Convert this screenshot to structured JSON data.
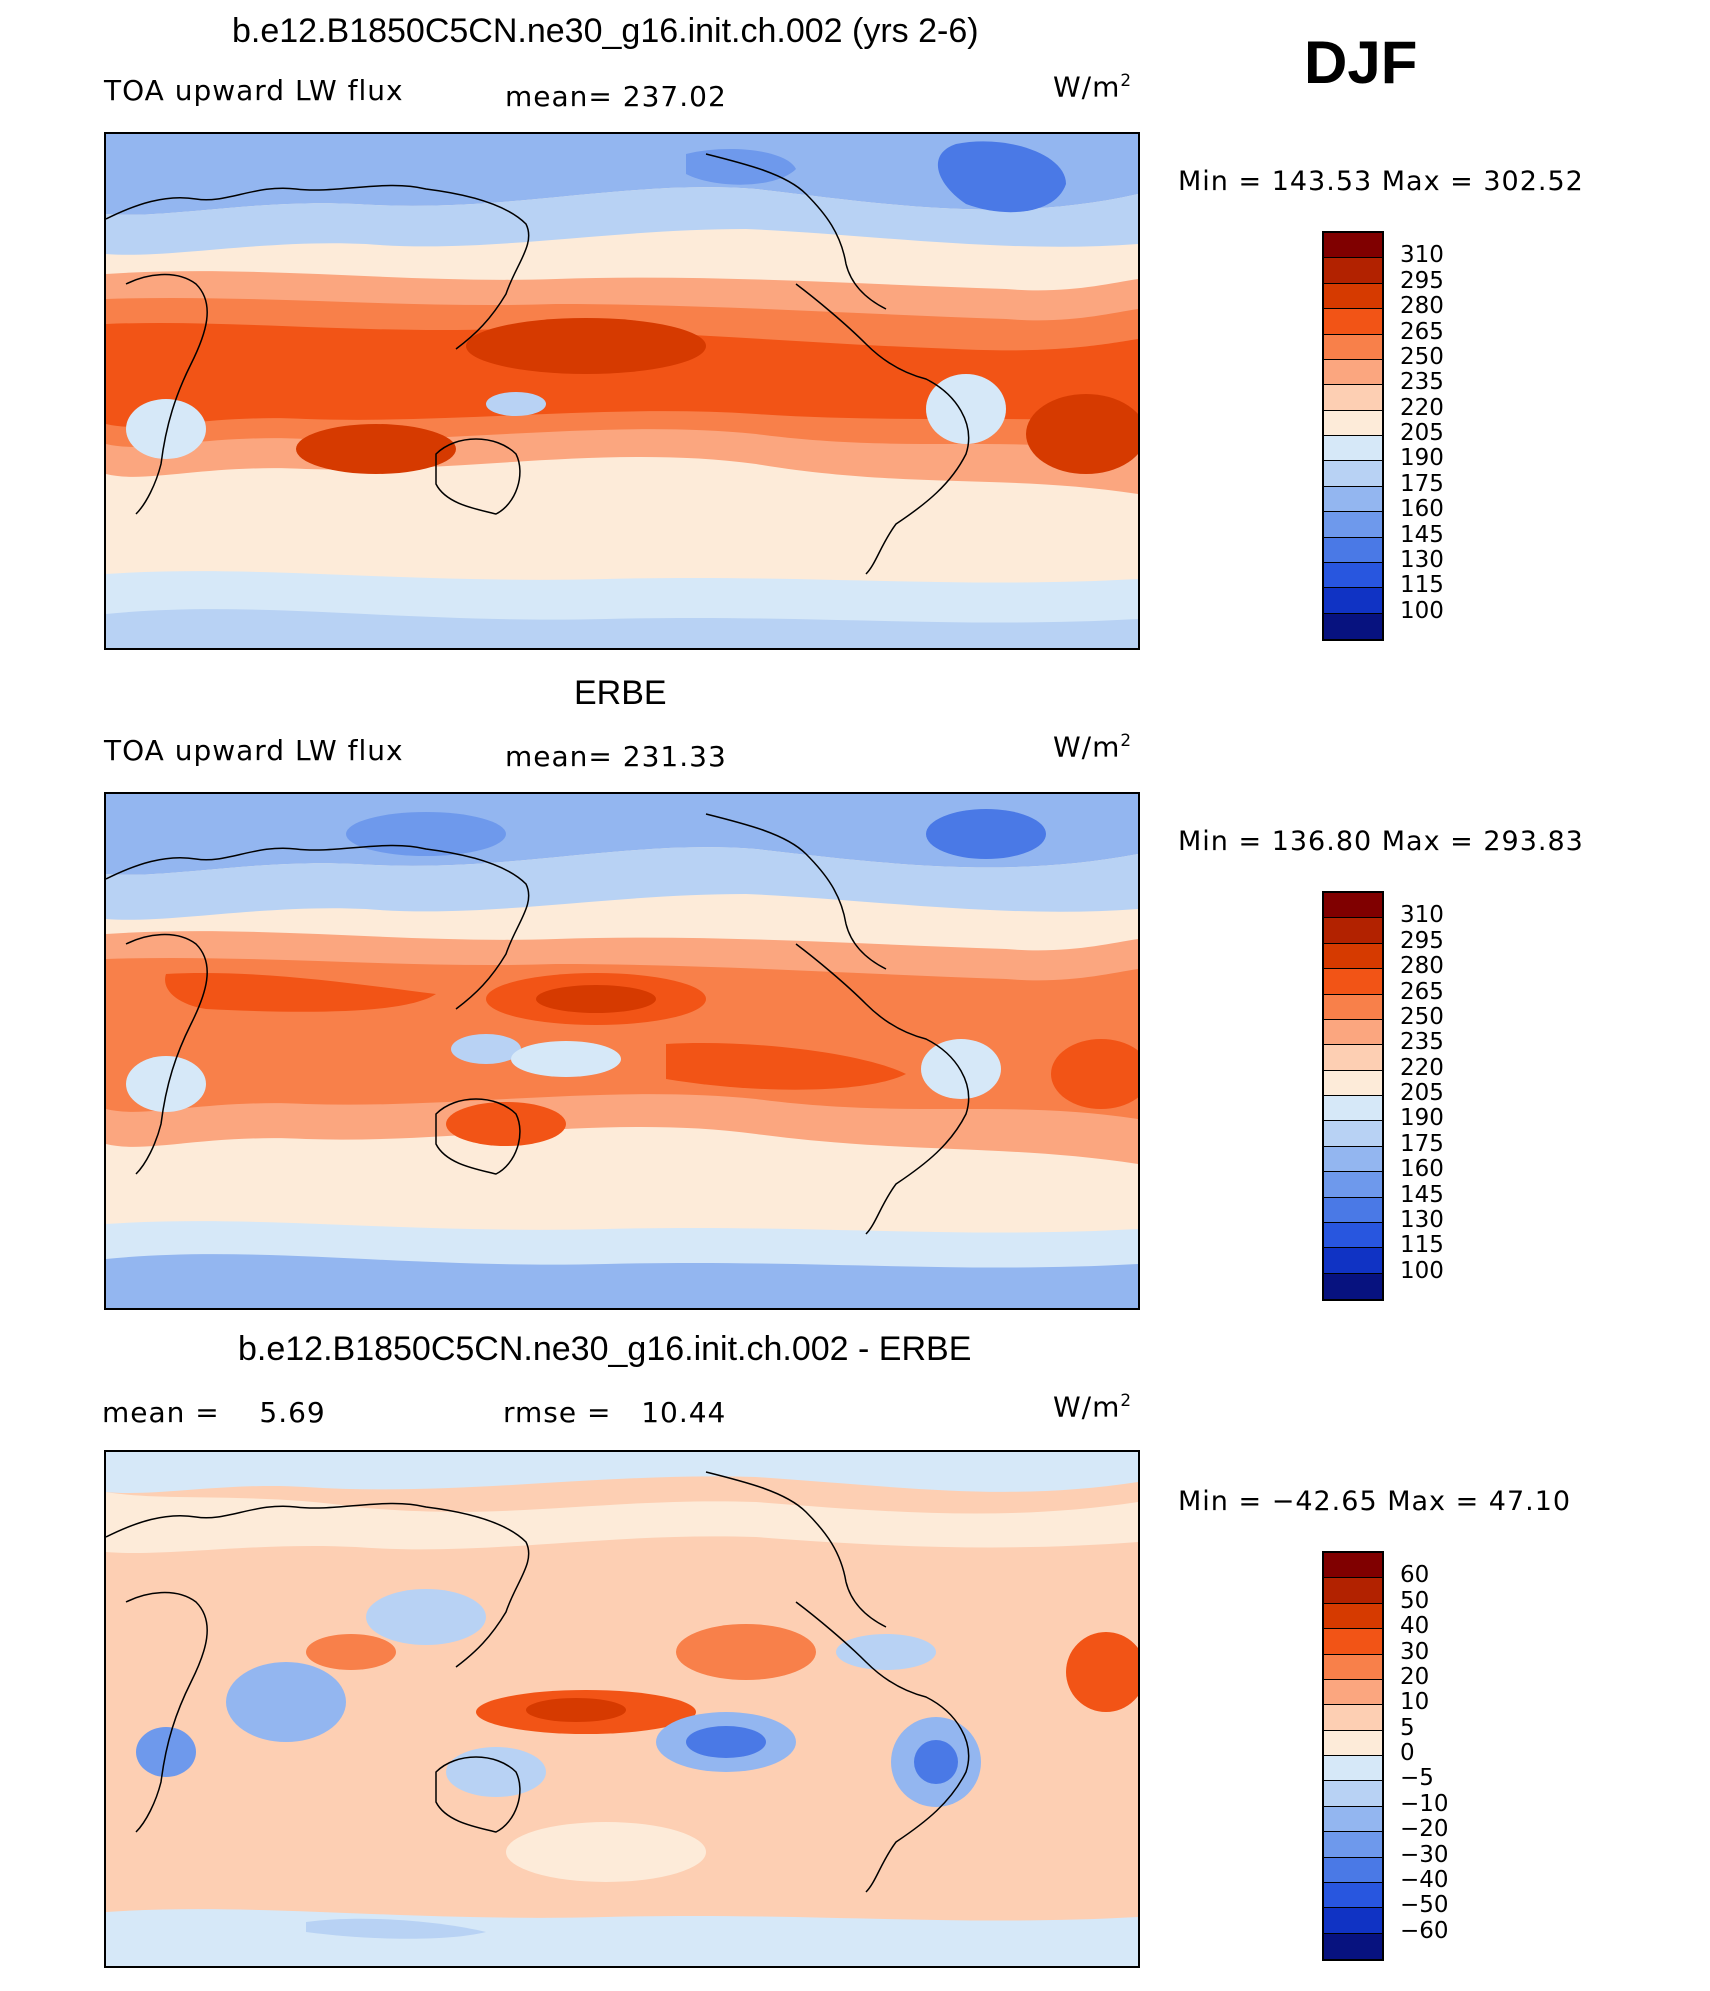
{
  "season": "DJF",
  "units_base": "W/m",
  "units_exp": "2",
  "panels": [
    {
      "title": "b.e12.B1850C5CN.ne30_g16.init.ch.002 (yrs 2-6)",
      "left_label": "TOA upward LW flux",
      "center_label": "mean=",
      "center_value": "237.02",
      "minmax": "Min = 143.53 Max = 302.52"
    },
    {
      "title": "ERBE",
      "left_label": "TOA upward LW flux",
      "center_label": "mean=",
      "center_value": "231.33",
      "minmax": "Min = 136.80 Max = 293.83"
    },
    {
      "title": "b.e12.B1850C5CN.ne30_g16.init.ch.002 - ERBE",
      "left_label": "mean =",
      "left_value": "5.69",
      "center_label": "rmse =",
      "center_value": "10.44",
      "minmax": "Min = −42.65 Max =   47.10"
    }
  ],
  "chart_data": [
    {
      "type": "heatmap",
      "title": "b.e12.B1850C5CN.ne30_g16.init.ch.002 (yrs 2-6)",
      "field": "TOA upward LW flux",
      "units": "W/m2",
      "mean": 237.02,
      "min": 143.53,
      "max": 302.52,
      "levels": [
        "310",
        "295",
        "280",
        "265",
        "250",
        "235",
        "220",
        "205",
        "190",
        "175",
        "160",
        "145",
        "130",
        "115",
        "100"
      ],
      "colors": [
        "#800000",
        "#b22200",
        "#d63a00",
        "#f25416",
        "#f8804a",
        "#fba67f",
        "#fdcfb3",
        "#fdebd9",
        "#d6e8f8",
        "#b8d2f4",
        "#93b6f0",
        "#6e99ec",
        "#4a79e6",
        "#2856df",
        "#1033c4",
        "#07127f"
      ]
    },
    {
      "type": "heatmap",
      "title": "ERBE",
      "field": "TOA upward LW flux",
      "units": "W/m2",
      "mean": 231.33,
      "min": 136.8,
      "max": 293.83,
      "levels": [
        "310",
        "295",
        "280",
        "265",
        "250",
        "235",
        "220",
        "205",
        "190",
        "175",
        "160",
        "145",
        "130",
        "115",
        "100"
      ],
      "colors": [
        "#800000",
        "#b22200",
        "#d63a00",
        "#f25416",
        "#f8804a",
        "#fba67f",
        "#fdcfb3",
        "#fdebd9",
        "#d6e8f8",
        "#b8d2f4",
        "#93b6f0",
        "#6e99ec",
        "#4a79e6",
        "#2856df",
        "#1033c4",
        "#07127f"
      ]
    },
    {
      "type": "heatmap",
      "title": "b.e12.B1850C5CN.ne30_g16.init.ch.002 - ERBE",
      "units": "W/m2",
      "mean": 5.69,
      "rmse": 10.44,
      "min": -42.65,
      "max": 47.1,
      "levels": [
        "60",
        "50",
        "40",
        "30",
        "20",
        "10",
        "5",
        "0",
        "−5",
        "−10",
        "−20",
        "−30",
        "−40",
        "−50",
        "−60"
      ],
      "colors": [
        "#800000",
        "#b22200",
        "#d63a00",
        "#f25416",
        "#f8804a",
        "#fba67f",
        "#fdcfb3",
        "#fdebd9",
        "#d6e8f8",
        "#b8d2f4",
        "#93b6f0",
        "#6e99ec",
        "#4a79e6",
        "#2856df",
        "#1033c4",
        "#07127f"
      ]
    }
  ]
}
